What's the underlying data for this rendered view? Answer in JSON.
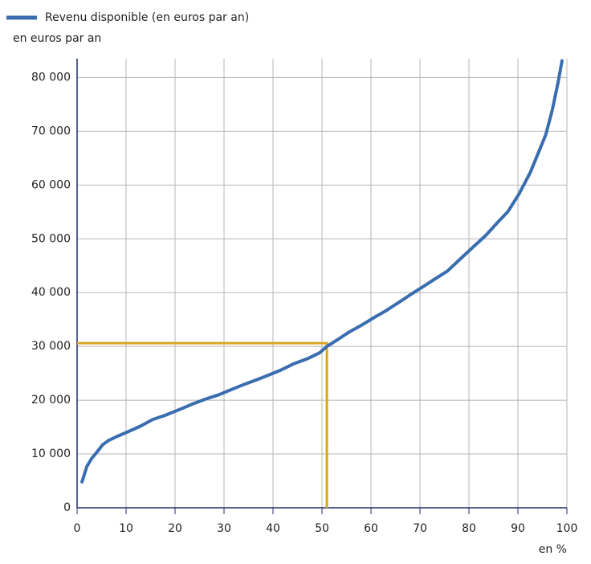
{
  "chart_data": {
    "type": "line",
    "y_label": "en euros par an",
    "x_label": "en %",
    "x": [
      1.0,
      2.0,
      3.0,
      4.1,
      5.2,
      6.4,
      8.0,
      10.3,
      13.0,
      15.4,
      18.0,
      21.0,
      23.6,
      26.2,
      28.9,
      31.3,
      34.0,
      36.7,
      39.2,
      41.6,
      44.3,
      47.0,
      49.5,
      51.0,
      53.1,
      55.6,
      58.0,
      60.7,
      63.0,
      65.7,
      68.2,
      70.8,
      73.0,
      75.6,
      77.7,
      81.0,
      83.4,
      85.9,
      87.9,
      90.2,
      92.5,
      94.4,
      95.7,
      97.0,
      98.2,
      99.0
    ],
    "series": [
      {
        "name": "Revenu disponible (en euros par an)",
        "color": "#3a6db0",
        "values": [
          4800,
          7700,
          9200,
          10400,
          11700,
          12500,
          13200,
          14100,
          15200,
          16400,
          17200,
          18300,
          19300,
          20200,
          21000,
          21900,
          22900,
          23800,
          24700,
          25600,
          26800,
          27700,
          28800,
          30000,
          31200,
          32700,
          33900,
          35400,
          36600,
          38200,
          39700,
          41200,
          42500,
          44000,
          45800,
          48600,
          50600,
          53100,
          55000,
          58300,
          62300,
          66500,
          69400,
          73900,
          79100,
          83100
        ]
      }
    ],
    "reference": {
      "x": 51.0,
      "y": 30600,
      "color": "#d9a520"
    },
    "xlim": [
      0,
      100
    ],
    "xticks": [
      0,
      10,
      20,
      30,
      40,
      50,
      60,
      70,
      80,
      90,
      100
    ],
    "ylim": [
      0,
      83500
    ],
    "yticks": [
      0,
      {
        "value": 10000,
        "label": "10 000"
      },
      {
        "value": 20000,
        "label": "20 000"
      },
      {
        "value": 30000,
        "label": "30 000"
      },
      {
        "value": 40000,
        "label": "40 000"
      },
      {
        "value": 50000,
        "label": "50 000"
      },
      {
        "value": 60000,
        "label": "60 000"
      },
      {
        "value": 70000,
        "label": "70 000"
      },
      {
        "value": 80000,
        "label": "80 000"
      }
    ],
    "grid": true,
    "legend": "top-left"
  }
}
